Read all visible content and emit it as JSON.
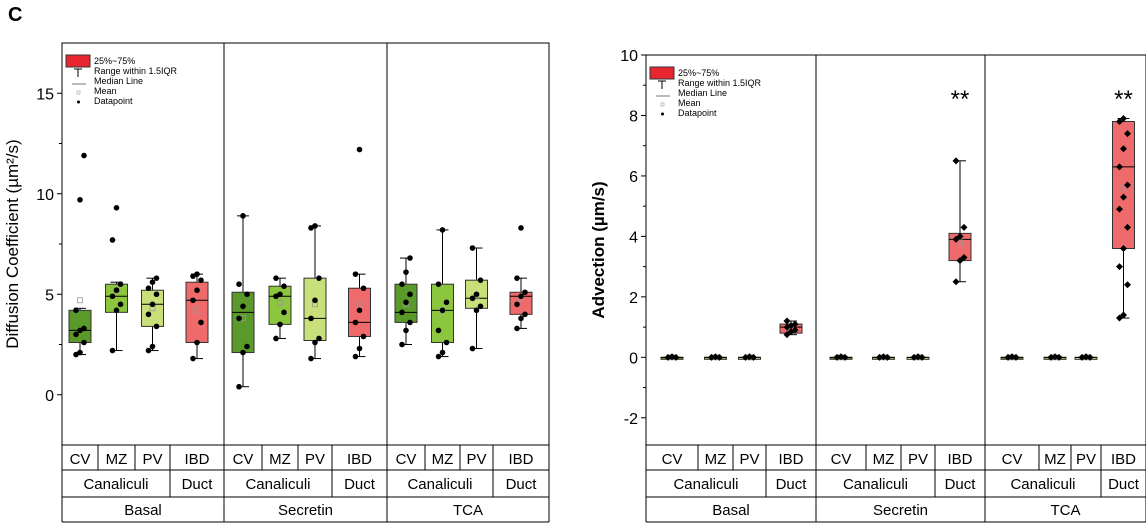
{
  "panel_label": "C",
  "legend": {
    "box": "25%~75%",
    "whisker": "Range within 1.5IQR",
    "median": "Median Line",
    "mean": "Mean",
    "point": "Datapoint"
  },
  "colors": {
    "CV": "#5a9a2a",
    "MZ": "#8cc63f",
    "PV": "#c9e07a",
    "IBD": "#ef6b6b",
    "legend_box": "#e8262f"
  },
  "chart_data": [
    {
      "type": "box",
      "ylabel": "Diffusion Coefficient (µm²/s)",
      "ylim": [
        -2.5,
        17.5
      ],
      "yticks": [
        "0",
        "5",
        "10",
        "15"
      ],
      "ytick_values": [
        0,
        5,
        10,
        15
      ],
      "group_labels": [
        "Basal",
        "Secretin",
        "TCA"
      ],
      "subgroup_labels": [
        "Canaliculi",
        "Duct"
      ],
      "categories": [
        "CV",
        "MZ",
        "PV",
        "IBD"
      ],
      "groups": [
        {
          "boxes": [
            {
              "cat": "CV",
              "q1": 2.6,
              "median": 3.2,
              "q3": 4.2,
              "wlo": 2.0,
              "whi": 4.3,
              "mean": 4.7,
              "points": [
                2.0,
                2.1,
                2.6,
                3.0,
                3.2,
                3.3,
                4.2,
                9.7,
                11.9
              ]
            },
            {
              "cat": "MZ",
              "q1": 4.1,
              "median": 4.9,
              "q3": 5.5,
              "wlo": 2.2,
              "whi": 5.6,
              "mean": 5.2,
              "points": [
                2.2,
                4.2,
                4.5,
                4.9,
                5.2,
                5.5,
                7.7,
                9.3
              ]
            },
            {
              "cat": "PV",
              "q1": 3.4,
              "median": 4.5,
              "q3": 5.2,
              "wlo": 2.2,
              "whi": 5.8,
              "mean": 4.3,
              "points": [
                2.2,
                2.4,
                3.4,
                4.0,
                4.5,
                5.0,
                5.3,
                5.6,
                5.8
              ]
            },
            {
              "cat": "IBD",
              "q1": 2.6,
              "median": 4.7,
              "q3": 5.6,
              "wlo": 1.8,
              "whi": 6.0,
              "mean": 4.2,
              "points": [
                1.8,
                2.6,
                3.6,
                4.7,
                5.2,
                5.7,
                5.9,
                6.0
              ]
            }
          ]
        },
        {
          "boxes": [
            {
              "cat": "CV",
              "q1": 2.1,
              "median": 4.1,
              "q3": 5.1,
              "wlo": 0.4,
              "whi": 8.9,
              "mean": 3.8,
              "points": [
                0.4,
                2.1,
                2.4,
                3.8,
                4.4,
                5.0,
                5.5,
                8.9
              ]
            },
            {
              "cat": "MZ",
              "q1": 3.5,
              "median": 4.9,
              "q3": 5.4,
              "wlo": 2.8,
              "whi": 5.8,
              "mean": 4.6,
              "points": [
                2.8,
                3.5,
                4.1,
                4.9,
                5.0,
                5.4,
                5.8
              ]
            },
            {
              "cat": "PV",
              "q1": 2.7,
              "median": 3.8,
              "q3": 5.8,
              "wlo": 1.8,
              "whi": 8.4,
              "mean": 4.5,
              "points": [
                1.8,
                2.6,
                2.8,
                3.8,
                4.7,
                5.8,
                8.3,
                8.4
              ]
            },
            {
              "cat": "IBD",
              "q1": 2.9,
              "median": 3.6,
              "q3": 5.3,
              "wlo": 1.9,
              "whi": 6.0,
              "mean": 4.5,
              "points": [
                1.9,
                2.3,
                2.9,
                3.6,
                4.2,
                5.3,
                6.0,
                12.2
              ]
            }
          ]
        },
        {
          "boxes": [
            {
              "cat": "CV",
              "q1": 3.6,
              "median": 4.1,
              "q3": 5.5,
              "wlo": 2.5,
              "whi": 6.8,
              "mean": 4.5,
              "points": [
                2.5,
                3.2,
                3.6,
                4.1,
                4.6,
                5.0,
                5.5,
                6.1,
                6.8
              ]
            },
            {
              "cat": "MZ",
              "q1": 2.6,
              "median": 4.2,
              "q3": 5.5,
              "wlo": 1.9,
              "whi": 8.2,
              "mean": 4.2,
              "points": [
                1.9,
                2.1,
                2.6,
                3.2,
                4.2,
                4.6,
                5.5,
                8.2
              ]
            },
            {
              "cat": "PV",
              "q1": 4.3,
              "median": 4.8,
              "q3": 5.7,
              "wlo": 2.3,
              "whi": 7.3,
              "mean": 4.9,
              "points": [
                2.3,
                4.2,
                4.4,
                4.8,
                5.0,
                5.7,
                7.3
              ]
            },
            {
              "cat": "IBD",
              "q1": 4.0,
              "median": 4.9,
              "q3": 5.1,
              "wlo": 3.3,
              "whi": 5.8,
              "mean": 4.8,
              "points": [
                3.3,
                3.8,
                4.0,
                4.5,
                4.9,
                5.1,
                5.8,
                8.3
              ]
            }
          ]
        }
      ]
    },
    {
      "type": "box",
      "ylabel": "Advection (µm/s)",
      "ylim": [
        -2.9,
        10
      ],
      "yticks": [
        "-2",
        "0",
        "2",
        "4",
        "6",
        "8",
        "10"
      ],
      "ytick_values": [
        -2,
        0,
        2,
        4,
        6,
        8,
        10
      ],
      "group_labels": [
        "Basal",
        "Secretin",
        "TCA"
      ],
      "subgroup_labels": [
        "Canaliculi",
        "Duct"
      ],
      "categories": [
        "CV",
        "MZ",
        "PV",
        "IBD"
      ],
      "annotations": [
        "",
        "**",
        "**"
      ],
      "groups": [
        {
          "boxes": [
            {
              "cat": "CV",
              "q1": 0.0,
              "median": 0.0,
              "q3": 0.0,
              "wlo": 0.0,
              "whi": 0.0,
              "mean": 0.0,
              "points": [
                0.0,
                0.02,
                0.0
              ]
            },
            {
              "cat": "MZ",
              "q1": 0.0,
              "median": 0.0,
              "q3": 0.0,
              "wlo": 0.0,
              "whi": 0.0,
              "mean": 0.0,
              "points": [
                0.0,
                0.02,
                0.0
              ]
            },
            {
              "cat": "PV",
              "q1": 0.0,
              "median": 0.0,
              "q3": 0.0,
              "wlo": 0.0,
              "whi": 0.0,
              "mean": 0.0,
              "points": [
                0.0,
                0.02,
                0.0
              ]
            },
            {
              "cat": "IBD",
              "q1": 0.8,
              "median": 1.0,
              "q3": 1.1,
              "wlo": 0.75,
              "whi": 1.2,
              "mean": 0.95,
              "points": [
                0.75,
                0.85,
                0.9,
                1.0,
                1.05,
                1.1,
                1.2
              ]
            }
          ]
        },
        {
          "boxes": [
            {
              "cat": "CV",
              "q1": 0.0,
              "median": 0.0,
              "q3": 0.0,
              "wlo": 0.0,
              "whi": 0.0,
              "mean": 0.0,
              "points": [
                0.0,
                0.02,
                0.0
              ]
            },
            {
              "cat": "MZ",
              "q1": 0.0,
              "median": 0.0,
              "q3": 0.0,
              "wlo": 0.0,
              "whi": 0.0,
              "mean": 0.0,
              "points": [
                0.0,
                0.02,
                0.0
              ]
            },
            {
              "cat": "PV",
              "q1": 0.0,
              "median": 0.0,
              "q3": 0.0,
              "wlo": 0.0,
              "whi": 0.0,
              "mean": 0.0,
              "points": [
                0.0,
                0.02,
                0.0
              ]
            },
            {
              "cat": "IBD",
              "q1": 3.2,
              "median": 3.9,
              "q3": 4.1,
              "wlo": 2.5,
              "whi": 6.5,
              "mean": 3.8,
              "points": [
                2.5,
                3.2,
                3.3,
                3.9,
                4.0,
                4.3,
                6.5
              ]
            }
          ]
        },
        {
          "boxes": [
            {
              "cat": "CV",
              "q1": 0.0,
              "median": 0.0,
              "q3": 0.0,
              "wlo": 0.0,
              "whi": 0.0,
              "mean": 0.0,
              "points": [
                0.0,
                0.02,
                0.0
              ]
            },
            {
              "cat": "MZ",
              "q1": 0.0,
              "median": 0.0,
              "q3": 0.0,
              "wlo": 0.0,
              "whi": 0.0,
              "mean": 0.0,
              "points": [
                0.0,
                0.02,
                0.0
              ]
            },
            {
              "cat": "PV",
              "q1": 0.0,
              "median": 0.0,
              "q3": 0.0,
              "wlo": 0.0,
              "whi": 0.0,
              "mean": 0.0,
              "points": [
                0.0,
                0.02,
                0.0
              ]
            },
            {
              "cat": "IBD",
              "q1": 3.6,
              "median": 6.3,
              "q3": 7.8,
              "wlo": 1.3,
              "whi": 7.9,
              "mean": 5.6,
              "points": [
                1.3,
                1.4,
                2.4,
                3.0,
                3.6,
                4.3,
                4.9,
                5.3,
                5.7,
                6.3,
                6.9,
                7.4,
                7.8,
                7.9
              ]
            }
          ]
        }
      ]
    }
  ]
}
